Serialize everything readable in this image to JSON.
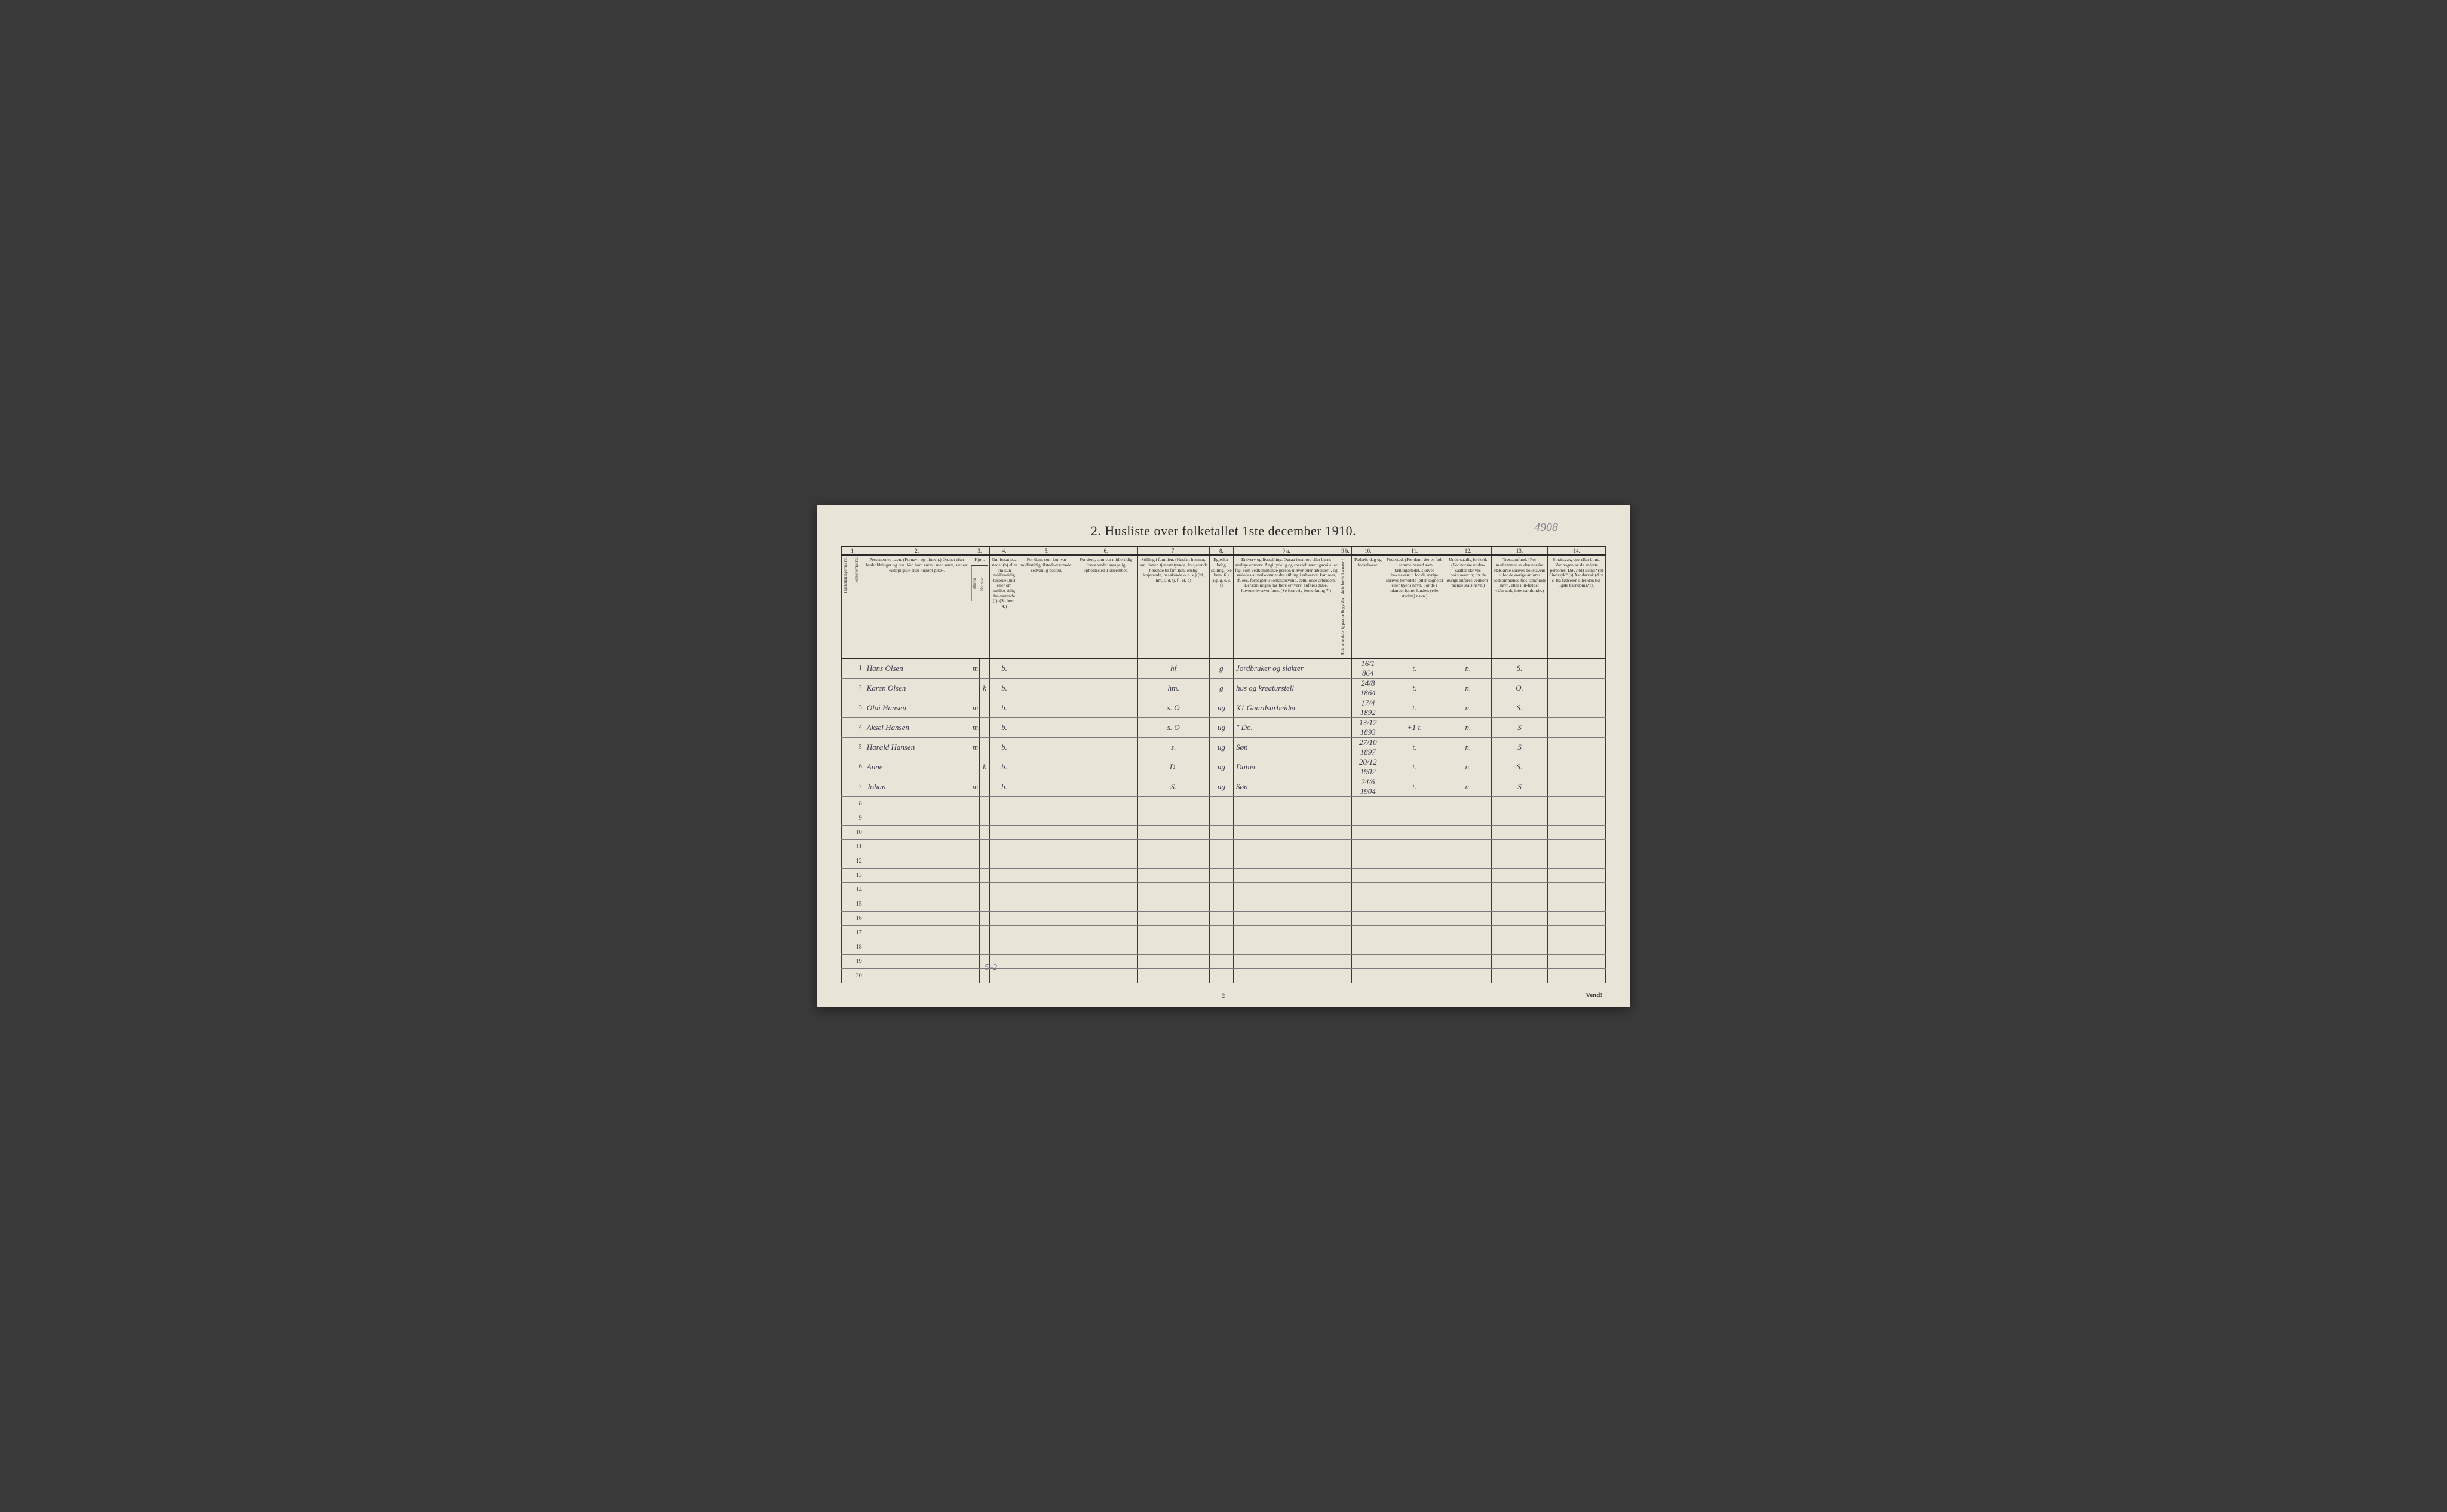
{
  "title": "2.  Husliste over folketallet 1ste december 1910.",
  "handwritten_topright": "4908",
  "column_numbers": [
    "1.",
    "",
    "2.",
    "3.",
    "",
    "4.",
    "5.",
    "6.",
    "7.",
    "8.",
    "9 a.",
    "9 b.",
    "10.",
    "11.",
    "12.",
    "13.",
    "14."
  ],
  "headers": {
    "c1": "Husholdningernes nr.",
    "c1b": "Personernes nr.",
    "c2": "Personernes navn.\n(Fornavn og tilnavn.)\nOrdnet efter husholdninger og hus.\nVed barn endnu uten navn, sættes: «udøpt gut» eller «udøpt pike».",
    "c3": "Kjøn.",
    "c3_sub_m": "Mænd.",
    "c3_sub_k": "Kvinder.",
    "c4": "Om bosat paa stedet (b) eller om kun midler-tidig tilstede (mt) eller om midler-tidig fra-værende (f).\n(Se bem. 4.)",
    "c5": "For dem, som kun var midlertidig tilstede-værende:\nsedvanlig bosted.",
    "c6": "For dem, som var midlertidig fraværende:\nantagelig opholdssted 1 december.",
    "c7": "Stilling i familien.\n(Husfar, husmor, søn, datter, tjenestetyende, lo-sjerende hørende til familien, enslig losjerende, besøkende o. s. v.)\n(hf, hm, s, d, tj, fl, el, b)",
    "c8": "Egteska-belig stilling.\n(Se bem. 6.)\n(ug, g, e, s, f)",
    "c9a": "Erhverv og livsstilling.\nOgsaa husmors eller barns særlige erhverv.\nAngi tydelig og specielt næringsvei eller fag, som vedkommende person utøver eller arbeider i, og saaledes at vedkommendes stilling i erhvervet kan sees, (f. eks. forpagter, skomakersvend, celluloose-arbeider). Dersom nogen har flere erhverv, anføres disse, hovederhvervet først.\n(Se forøvrig bemerkning 7.)",
    "c9b": "Hvis arbeidsledig paa tællingstiden, skriv her bokstaven: l.",
    "c10": "Fodsels-dag og fodsels-aar.",
    "c11": "Fødested.\n(For dem, der er født i samme herred som tællingsstedet, skrives bokstaven: t; for de øvrige skrives herredets (eller sognets) eller byens navn. For de i utlandet fødte: landets (eller stedets) navn.)",
    "c12": "Undersaatlig forhold.\n(For norske under-saatter skrives bokstaven: n; for de øvrige anføres vedkom-mende stats navn.)",
    "c13": "Trossamfund.\n(For medlemmer av den norske statskirke skrives bokstaven: s; for de øvrige anføres vedkommende tros-samfunds navn, eller i til-fælde: «Uttraadt, intet samfund».)",
    "c14": "Sindssvak, døv eller blind.\nVar nogen av de anførte personer:\nDøv?       (d)\nBlind?      (b)\nSindssyk?  (s)\nAandssvak (d. v. s. fra fødselen eller den tid-ligste barndom)? (a)"
  },
  "rows": [
    {
      "n": "1",
      "name": "Hans Olsen",
      "m": "m.",
      "k": "",
      "b": "b.",
      "c5": "",
      "c6": "",
      "c7": "hf",
      "c8": "g",
      "c9a": "Jordbruker og slakter",
      "c9b": "",
      "c10": "16/1 864",
      "c11": "t.",
      "c12": "n.",
      "c13": "S.",
      "c14": ""
    },
    {
      "n": "2",
      "name": "Karen Olsen",
      "m": "",
      "k": "k",
      "b": "b.",
      "c5": "",
      "c6": "",
      "c7": "hm.",
      "c8": "g",
      "c9a": "hus og kreaturstell",
      "c9b": "",
      "c10": "24/8 1864",
      "c11": "t.",
      "c12": "n.",
      "c13": "O.",
      "c14": ""
    },
    {
      "n": "3",
      "name": "Olai Hansen",
      "m": "m.",
      "k": "",
      "b": "b.",
      "c5": "",
      "c6": "",
      "c7": "s.      O",
      "c8": "ug",
      "c9a": "X1 Gaardsarbeider",
      "c9b": "",
      "c10": "17/4 1892",
      "c11": "t.",
      "c12": "n.",
      "c13": "S.",
      "c14": ""
    },
    {
      "n": "4",
      "name": "Aksel Hansen",
      "m": "m.",
      "k": "",
      "b": "b.",
      "c5": "",
      "c6": "",
      "c7": "s.      O",
      "c8": "ug",
      "c9a": "\"      Do.",
      "c9b": "",
      "c10": "13/12 1893",
      "c11": "+1  t.",
      "c12": "n.",
      "c13": "S",
      "c14": ""
    },
    {
      "n": "5",
      "name": "Harald Hansen",
      "m": "m",
      "k": "",
      "b": "b.",
      "c5": "",
      "c6": "",
      "c7": "s.",
      "c8": "ug",
      "c9a": "Søn",
      "c9b": "",
      "c10": "27/10 1897",
      "c11": "t.",
      "c12": "n.",
      "c13": "S",
      "c14": ""
    },
    {
      "n": "6",
      "name": "Anne",
      "m": "",
      "k": "k",
      "b": "b.",
      "c5": "",
      "c6": "",
      "c7": "D.",
      "c8": "ug",
      "c9a": "Datter",
      "c9b": "",
      "c10": "20/12 1902",
      "c11": "t.",
      "c12": "n.",
      "c13": "S.",
      "c14": ""
    },
    {
      "n": "7",
      "name": "Johan",
      "m": "m.",
      "k": "",
      "b": "b.",
      "c5": "",
      "c6": "",
      "c7": "S.",
      "c8": "ug",
      "c9a": "Søn",
      "c9b": "",
      "c10": "24/6 1904",
      "c11": "t.",
      "c12": "n.",
      "c13": "S",
      "c14": ""
    }
  ],
  "empty_rows": [
    "8",
    "9",
    "10",
    "11",
    "12",
    "13",
    "14",
    "15",
    "16",
    "17",
    "18",
    "19",
    "20"
  ],
  "tally": "5–2",
  "footer_page": "2",
  "footer_vend": "Vend!",
  "colors": {
    "page_bg": "#e8e4d8",
    "ink": "#2a2a2a",
    "handwriting": "#3a3a4a",
    "pencil": "#8a7a8a",
    "border": "#3a3a3a"
  }
}
